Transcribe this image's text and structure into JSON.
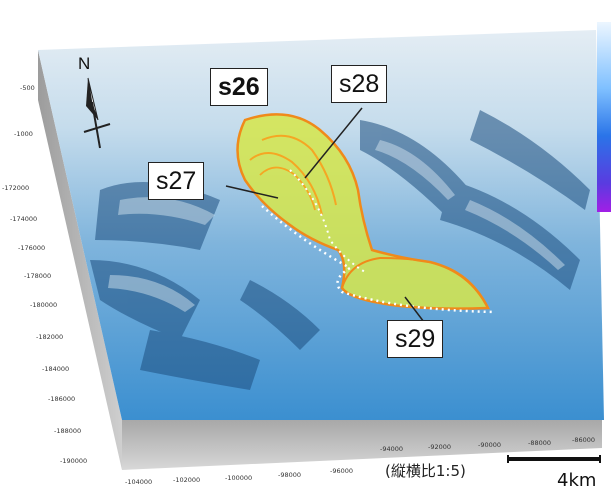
{
  "regions": [
    {
      "id": "s26",
      "label": "s26",
      "bold": true
    },
    {
      "id": "s27",
      "label": "s27",
      "bold": false
    },
    {
      "id": "s28",
      "label": "s28",
      "bold": false
    },
    {
      "id": "s29",
      "label": "s29",
      "bold": false
    }
  ],
  "north_arrow": {
    "label": "N"
  },
  "scale_bar": {
    "label": "4km",
    "note": "(縦横比1:5)"
  },
  "depth_ticks": [
    "-500",
    "-1000"
  ],
  "y_ticks": [
    "-172000",
    "-174000",
    "-176000",
    "-178000",
    "-180000",
    "-182000",
    "-184000",
    "-186000",
    "-188000",
    "-190000"
  ],
  "x_ticks": [
    "-104000",
    "-102000",
    "-100000",
    "-98000",
    "-96000",
    "-94000",
    "-92000",
    "-90000",
    "-88000",
    "-86000"
  ],
  "colors": {
    "landslide_fill": "#d6e64a",
    "landslide_outline": "#f08a1a",
    "inner_outline": "#f5a623",
    "boundary_dotted": "#ffffff",
    "seafloor_shallow": "#cfe3f2",
    "seafloor_deep": "#3a86c8",
    "colorbar_top": "#d8ecff",
    "colorbar_bottom": "#9b1fe0"
  }
}
